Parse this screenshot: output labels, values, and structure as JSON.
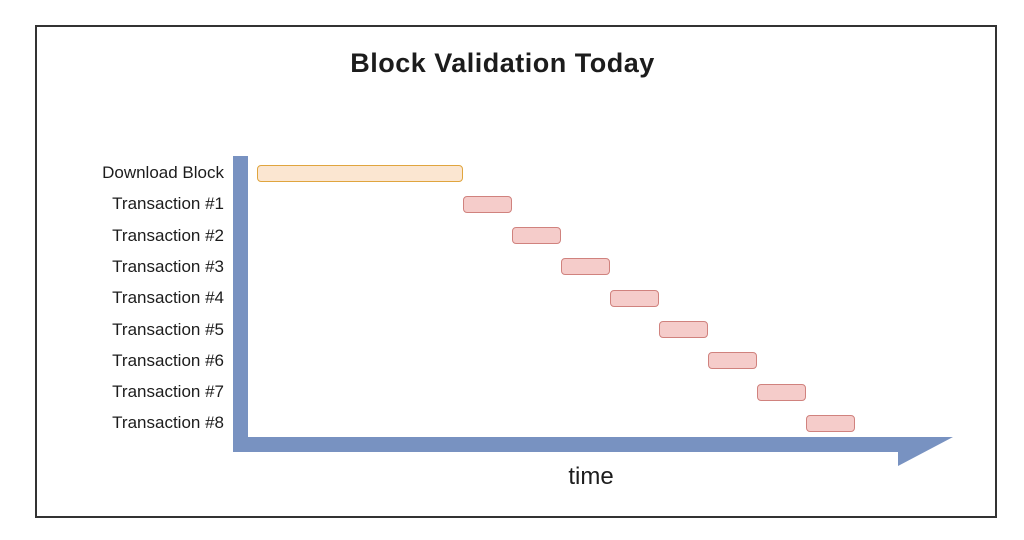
{
  "title": "Block Validation Today",
  "colors": {
    "axis": "#7892C1",
    "frame_border": "#333333",
    "text": "#1c1c1c",
    "download_fill": "#FBE6D1",
    "download_stroke": "#E0A53E",
    "transaction_fill": "#F5CCCA",
    "transaction_stroke": "#D0827E"
  },
  "chart_data": {
    "type": "bar",
    "subtype": "gantt-timeline",
    "title": "Block Validation Today",
    "xlabel": "time",
    "ylabel": "",
    "categories": [
      "Download Block",
      "Transaction #1",
      "Transaction #2",
      "Transaction #3",
      "Transaction #4",
      "Transaction #5",
      "Transaction #6",
      "Transaction #7",
      "Transaction #8"
    ],
    "tasks": [
      {
        "label": "Download Block",
        "kind": "download",
        "start": 0.0,
        "end": 4.2
      },
      {
        "label": "Transaction #1",
        "kind": "transaction",
        "start": 4.2,
        "end": 5.2
      },
      {
        "label": "Transaction #2",
        "kind": "transaction",
        "start": 5.2,
        "end": 6.2
      },
      {
        "label": "Transaction #3",
        "kind": "transaction",
        "start": 6.2,
        "end": 7.2
      },
      {
        "label": "Transaction #4",
        "kind": "transaction",
        "start": 7.2,
        "end": 8.2
      },
      {
        "label": "Transaction #5",
        "kind": "transaction",
        "start": 8.2,
        "end": 9.2
      },
      {
        "label": "Transaction #6",
        "kind": "transaction",
        "start": 9.2,
        "end": 10.2
      },
      {
        "label": "Transaction #7",
        "kind": "transaction",
        "start": 10.2,
        "end": 11.2
      },
      {
        "label": "Transaction #8",
        "kind": "transaction",
        "start": 11.2,
        "end": 12.2
      }
    ],
    "bar_styles": {
      "download": {
        "fill": "#FBE6D1",
        "stroke": "#E0A53E"
      },
      "transaction": {
        "fill": "#F5CCCA",
        "stroke": "#D0827E"
      }
    },
    "xlim": [
      0,
      13
    ],
    "x_ticks": [],
    "grid": false,
    "legend": false,
    "axis_arrow": "right"
  }
}
